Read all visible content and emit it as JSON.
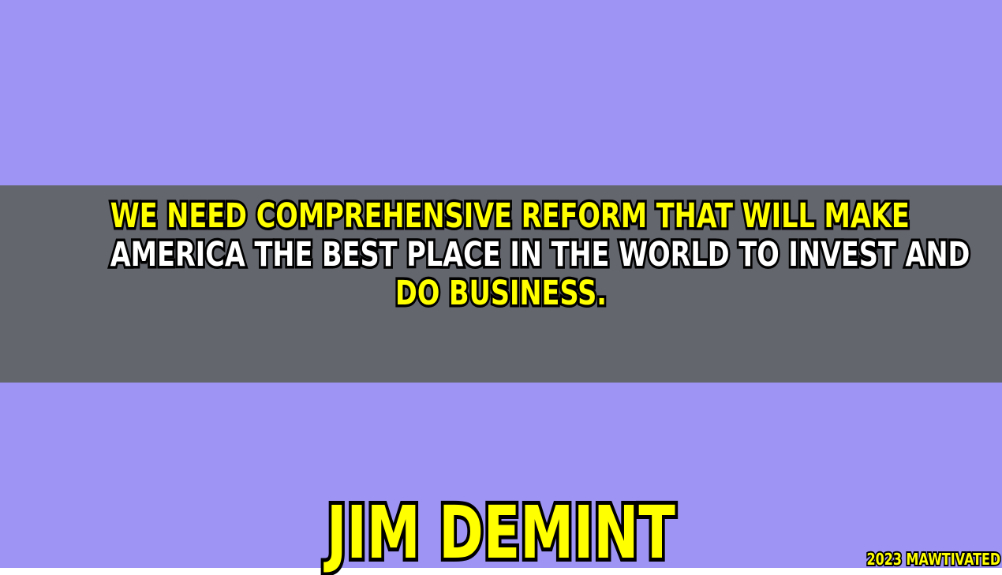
{
  "colors": {
    "background": "#9d94f3",
    "band": "#64666e",
    "highlight_text": "#ffff00",
    "plain_text": "#ffffff",
    "outline": "#000000"
  },
  "quote": {
    "lines": [
      {
        "text": "We need comprehensive reform that will make",
        "color": "#ffff00"
      },
      {
        "text": "America the best place in the world to invest and",
        "color": "#ffffff"
      },
      {
        "text": "do business.",
        "color": "#ffff00"
      }
    ]
  },
  "author": {
    "name": "Jim DeMint"
  },
  "credit": {
    "text": "2023 Mawtivated"
  }
}
